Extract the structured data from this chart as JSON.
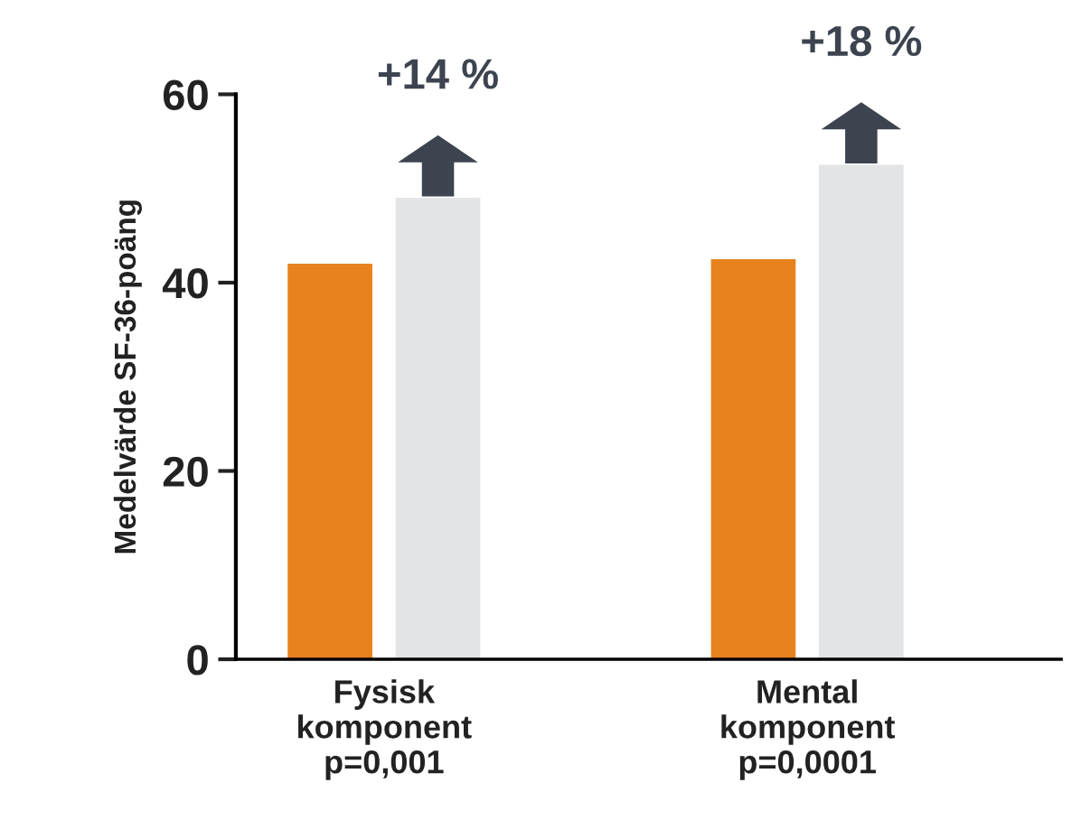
{
  "chart_data": {
    "type": "bar",
    "ylabel": "Medelvärde SF-36-poäng",
    "categories": [
      "Fysisk\nkomponent\np=0,001",
      "Mental\nkomponent\np=0,0001"
    ],
    "series": [
      {
        "color": "#e8821e",
        "values": [
          42,
          42.5
        ]
      },
      {
        "color": "#e3e4e6",
        "values": [
          49,
          52.5
        ]
      }
    ],
    "ylim": [
      0,
      60
    ],
    "yticks": [
      0,
      20,
      40,
      60
    ],
    "grid": false,
    "legend": false,
    "annotations": [
      "+14 %",
      "+18 %"
    ]
  }
}
